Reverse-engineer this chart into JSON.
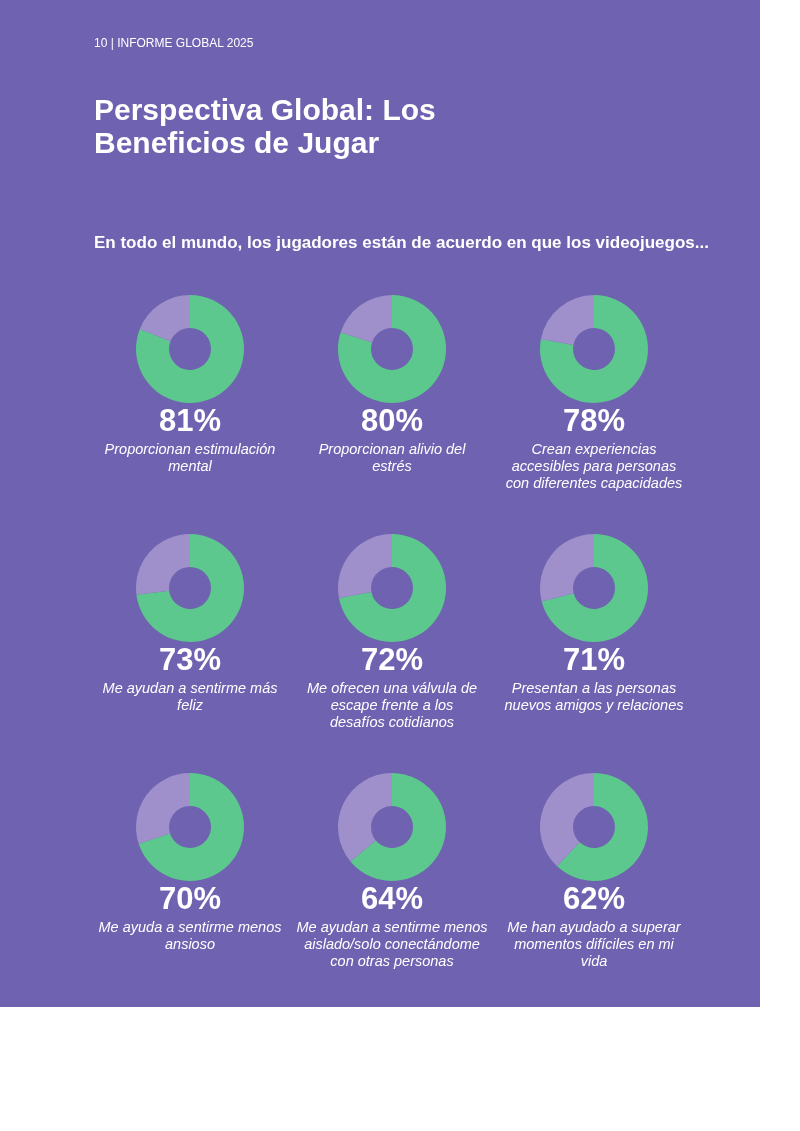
{
  "chart_data": [
    {
      "type": "donut",
      "title": "Perspectiva Global: Los Beneficios de Jugar",
      "subtitle": "En todo el mundo, los jugadores están de acuerdo en que los videojuegos...",
      "annotations": [
        "10 | INFORME GLOBAL 2025"
      ],
      "categories": [
        "Proporcionan estimulación mental",
        null
      ],
      "values": [
        81,
        19
      ],
      "colors": [
        "#5cc88e",
        "#9f8fca"
      ],
      "value_labels": [
        "81%",
        null
      ]
    },
    {
      "type": "donut",
      "categories": [
        "Proporcionan alivio del estrés",
        null
      ],
      "values": [
        80,
        20
      ],
      "colors": [
        "#5cc88e",
        "#9f8fca"
      ],
      "value_labels": [
        "80%",
        null
      ]
    },
    {
      "type": "donut",
      "categories": [
        "Crean experiencias accesibles para personas con diferentes capacidades",
        null
      ],
      "values": [
        78,
        22
      ],
      "colors": [
        "#5cc88e",
        "#9f8fca"
      ],
      "value_labels": [
        "78%",
        null
      ]
    },
    {
      "type": "donut",
      "categories": [
        "Me ayudan a sentirme más feliz",
        null
      ],
      "values": [
        73,
        27
      ],
      "colors": [
        "#5cc88e",
        "#9f8fca"
      ],
      "value_labels": [
        "73%",
        null
      ]
    },
    {
      "type": "donut",
      "categories": [
        "Me ofrecen una válvula de escape frente a los desafíos cotidianos",
        null
      ],
      "values": [
        72,
        28
      ],
      "colors": [
        "#5cc88e",
        "#9f8fca"
      ],
      "value_labels": [
        "72%",
        null
      ]
    },
    {
      "type": "donut",
      "categories": [
        "Presentan a las personas nuevos amigos y relaciones",
        null
      ],
      "values": [
        71,
        29
      ],
      "colors": [
        "#5cc88e",
        "#9f8fca"
      ],
      "value_labels": [
        "71%",
        null
      ]
    },
    {
      "type": "donut",
      "categories": [
        "Me ayuda a sentirme menos ansioso",
        null
      ],
      "values": [
        70,
        30
      ],
      "colors": [
        "#5cc88e",
        "#9f8fca"
      ],
      "value_labels": [
        "70%",
        null
      ]
    },
    {
      "type": "donut",
      "categories": [
        "Me ayudan a sentirme menos aislado/solo conectándome con otras personas",
        null
      ],
      "values": [
        64,
        36
      ],
      "colors": [
        "#5cc88e",
        "#9f8fca"
      ],
      "value_labels": [
        "64%",
        null
      ]
    },
    {
      "type": "donut",
      "categories": [
        "Me han ayudado a superar momentos difíciles en mi vida",
        null
      ],
      "values": [
        62,
        38
      ],
      "colors": [
        "#5cc88e",
        "#9f8fca"
      ],
      "value_labels": [
        "62%",
        null
      ]
    }
  ]
}
